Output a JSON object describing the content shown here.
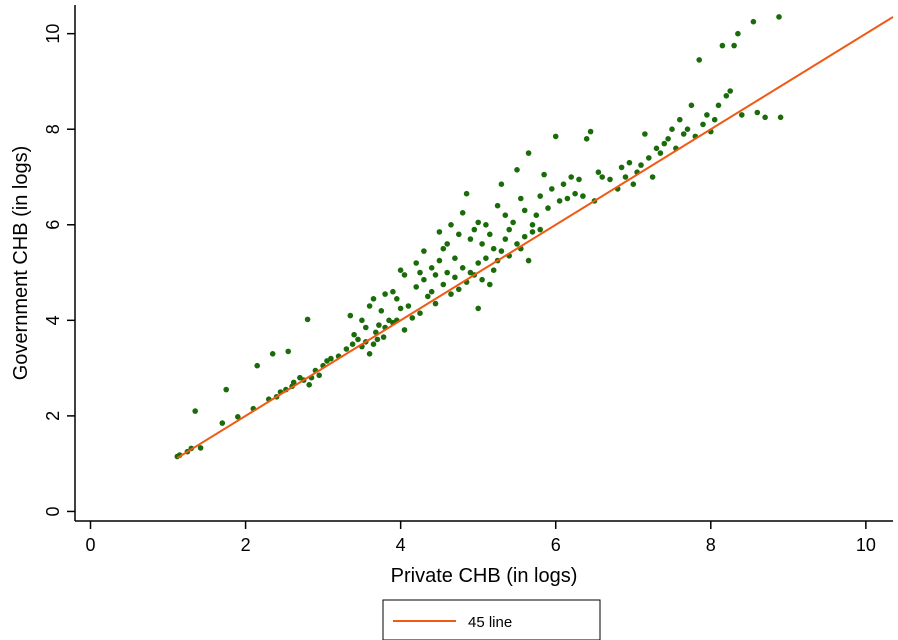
{
  "chart_data": {
    "type": "scatter",
    "title": "",
    "xlabel": "Private CHB (in logs)",
    "ylabel": "Government CHB (in logs)",
    "xlim": [
      -0.2,
      10.35
    ],
    "ylim": [
      -0.2,
      10.6
    ],
    "xticks": [
      "0",
      "2",
      "4",
      "6",
      "8",
      "10"
    ],
    "yticks": [
      "0",
      "2",
      "4",
      "6",
      "8",
      "10"
    ],
    "grid": false,
    "legend": {
      "position": "bottom-center",
      "entries": [
        "45 line"
      ]
    },
    "colors": {
      "points": "#1a6b0a",
      "line": "#f05a14"
    },
    "series": [
      {
        "type": "scatter",
        "points": [
          [
            1.12,
            1.15
          ],
          [
            1.15,
            1.18
          ],
          [
            1.25,
            1.25
          ],
          [
            1.3,
            1.32
          ],
          [
            1.35,
            2.1
          ],
          [
            1.42,
            1.33
          ],
          [
            1.7,
            1.85
          ],
          [
            1.75,
            2.55
          ],
          [
            1.9,
            1.98
          ],
          [
            2.1,
            2.15
          ],
          [
            2.15,
            3.05
          ],
          [
            2.3,
            2.35
          ],
          [
            2.35,
            3.3
          ],
          [
            2.4,
            2.4
          ],
          [
            2.45,
            2.5
          ],
          [
            2.52,
            2.55
          ],
          [
            2.55,
            3.35
          ],
          [
            2.6,
            2.62
          ],
          [
            2.62,
            2.7
          ],
          [
            2.7,
            2.8
          ],
          [
            2.75,
            2.75
          ],
          [
            2.8,
            4.02
          ],
          [
            2.82,
            2.65
          ],
          [
            2.85,
            2.8
          ],
          [
            2.9,
            2.95
          ],
          [
            2.95,
            2.85
          ],
          [
            3.0,
            3.05
          ],
          [
            3.05,
            3.15
          ],
          [
            3.1,
            3.2
          ],
          [
            3.2,
            3.25
          ],
          [
            3.3,
            3.4
          ],
          [
            3.35,
            4.1
          ],
          [
            3.38,
            3.5
          ],
          [
            3.4,
            3.7
          ],
          [
            3.45,
            3.6
          ],
          [
            3.5,
            4.0
          ],
          [
            3.5,
            3.45
          ],
          [
            3.55,
            3.55
          ],
          [
            3.55,
            3.85
          ],
          [
            3.6,
            4.3
          ],
          [
            3.6,
            3.3
          ],
          [
            3.65,
            4.45
          ],
          [
            3.65,
            3.5
          ],
          [
            3.68,
            3.75
          ],
          [
            3.7,
            3.6
          ],
          [
            3.72,
            3.9
          ],
          [
            3.75,
            4.2
          ],
          [
            3.78,
            3.65
          ],
          [
            3.8,
            4.55
          ],
          [
            3.8,
            3.85
          ],
          [
            3.85,
            4.0
          ],
          [
            3.9,
            4.6
          ],
          [
            3.9,
            3.95
          ],
          [
            3.95,
            4.45
          ],
          [
            3.95,
            4.0
          ],
          [
            4.0,
            5.05
          ],
          [
            4.0,
            4.25
          ],
          [
            4.05,
            4.95
          ],
          [
            4.05,
            3.8
          ],
          [
            4.1,
            4.3
          ],
          [
            4.15,
            4.05
          ],
          [
            4.2,
            5.2
          ],
          [
            4.2,
            4.7
          ],
          [
            4.25,
            4.15
          ],
          [
            4.25,
            5.0
          ],
          [
            4.3,
            5.45
          ],
          [
            4.3,
            4.85
          ],
          [
            4.35,
            4.5
          ],
          [
            4.4,
            5.1
          ],
          [
            4.4,
            4.6
          ],
          [
            4.45,
            4.95
          ],
          [
            4.45,
            4.35
          ],
          [
            4.5,
            5.85
          ],
          [
            4.5,
            5.25
          ],
          [
            4.55,
            5.5
          ],
          [
            4.55,
            4.75
          ],
          [
            4.6,
            5.6
          ],
          [
            4.6,
            5.0
          ],
          [
            4.65,
            6.0
          ],
          [
            4.65,
            4.55
          ],
          [
            4.7,
            5.3
          ],
          [
            4.7,
            4.9
          ],
          [
            4.75,
            5.8
          ],
          [
            4.75,
            4.65
          ],
          [
            4.8,
            6.25
          ],
          [
            4.8,
            5.1
          ],
          [
            4.85,
            6.65
          ],
          [
            4.85,
            4.8
          ],
          [
            4.9,
            5.7
          ],
          [
            4.9,
            5.0
          ],
          [
            4.95,
            5.9
          ],
          [
            4.95,
            4.95
          ],
          [
            5.0,
            6.05
          ],
          [
            5.0,
            5.2
          ],
          [
            5.0,
            4.25
          ],
          [
            5.05,
            5.6
          ],
          [
            5.05,
            4.85
          ],
          [
            5.1,
            6.0
          ],
          [
            5.1,
            5.3
          ],
          [
            5.15,
            5.8
          ],
          [
            5.15,
            4.75
          ],
          [
            5.2,
            5.5
          ],
          [
            5.2,
            5.05
          ],
          [
            5.25,
            6.4
          ],
          [
            5.25,
            5.25
          ],
          [
            5.3,
            6.85
          ],
          [
            5.3,
            5.45
          ],
          [
            5.35,
            6.2
          ],
          [
            5.35,
            5.7
          ],
          [
            5.4,
            5.9
          ],
          [
            5.4,
            5.35
          ],
          [
            5.45,
            6.05
          ],
          [
            5.5,
            7.15
          ],
          [
            5.5,
            5.6
          ],
          [
            5.55,
            6.55
          ],
          [
            5.55,
            5.5
          ],
          [
            5.6,
            6.3
          ],
          [
            5.6,
            5.75
          ],
          [
            5.65,
            7.5
          ],
          [
            5.65,
            5.25
          ],
          [
            5.7,
            6.0
          ],
          [
            5.7,
            5.85
          ],
          [
            5.75,
            6.2
          ],
          [
            5.8,
            6.6
          ],
          [
            5.8,
            5.9
          ],
          [
            5.85,
            7.05
          ],
          [
            5.9,
            6.35
          ],
          [
            5.95,
            6.75
          ],
          [
            6.0,
            7.85
          ],
          [
            6.05,
            6.5
          ],
          [
            6.1,
            6.85
          ],
          [
            6.15,
            6.55
          ],
          [
            6.2,
            7.0
          ],
          [
            6.25,
            6.65
          ],
          [
            6.3,
            6.95
          ],
          [
            6.35,
            6.6
          ],
          [
            6.4,
            7.8
          ],
          [
            6.45,
            7.95
          ],
          [
            6.5,
            6.5
          ],
          [
            6.55,
            7.1
          ],
          [
            6.6,
            7.0
          ],
          [
            6.7,
            6.95
          ],
          [
            6.8,
            6.75
          ],
          [
            6.85,
            7.2
          ],
          [
            6.9,
            7.0
          ],
          [
            6.95,
            7.3
          ],
          [
            7.0,
            6.85
          ],
          [
            7.05,
            7.1
          ],
          [
            7.1,
            7.25
          ],
          [
            7.15,
            7.9
          ],
          [
            7.2,
            7.4
          ],
          [
            7.25,
            7.0
          ],
          [
            7.3,
            7.6
          ],
          [
            7.35,
            7.5
          ],
          [
            7.4,
            7.7
          ],
          [
            7.45,
            7.8
          ],
          [
            7.5,
            8.0
          ],
          [
            7.55,
            7.6
          ],
          [
            7.6,
            8.2
          ],
          [
            7.65,
            7.9
          ],
          [
            7.7,
            8.0
          ],
          [
            7.75,
            8.5
          ],
          [
            7.8,
            7.85
          ],
          [
            7.85,
            9.45
          ],
          [
            7.9,
            8.1
          ],
          [
            7.95,
            8.3
          ],
          [
            8.0,
            7.95
          ],
          [
            8.05,
            8.2
          ],
          [
            8.1,
            8.5
          ],
          [
            8.15,
            9.75
          ],
          [
            8.2,
            8.7
          ],
          [
            8.25,
            8.8
          ],
          [
            8.3,
            9.75
          ],
          [
            8.35,
            10.0
          ],
          [
            8.4,
            8.3
          ],
          [
            8.55,
            10.25
          ],
          [
            8.6,
            8.35
          ],
          [
            8.7,
            8.25
          ],
          [
            8.9,
            8.25
          ],
          [
            8.88,
            10.35
          ]
        ]
      },
      {
        "name": "45 line",
        "type": "line",
        "points": [
          [
            1.12,
            1.12
          ],
          [
            10.35,
            10.35
          ]
        ]
      }
    ]
  }
}
